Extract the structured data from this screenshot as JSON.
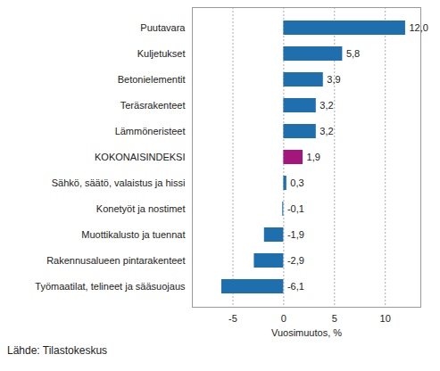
{
  "chart_data": {
    "type": "bar",
    "orientation": "horizontal",
    "categories": [
      "Puutavara",
      "Kuljetukset",
      "Betonielementit",
      "Teräsrakenteet",
      "Lämmöneristeet",
      "KOKONAISINDEKSI",
      "Sähkö, säätö, valaistus ja hissi",
      "Konetyöt ja nostimet",
      "Muottikalusto ja tuennat",
      "Rakennusalueen pintarakenteet",
      "Työmaatilat, telineet ja sääsuojaus"
    ],
    "values": [
      12.0,
      5.8,
      3.9,
      3.2,
      3.2,
      1.9,
      0.3,
      -0.1,
      -1.9,
      -2.9,
      -6.1
    ],
    "value_labels": [
      "12,0",
      "5,8",
      "3,9",
      "3,2",
      "3,2",
      "1,9",
      "0,3",
      "-0,1",
      "-1,9",
      "-2,9",
      "-6,1"
    ],
    "colors": [
      "#1f6fae",
      "#1f6fae",
      "#1f6fae",
      "#1f6fae",
      "#1f6fae",
      "#a3177d",
      "#1f6fae",
      "#1f6fae",
      "#1f6fae",
      "#1f6fae",
      "#1f6fae"
    ],
    "data_labels": true,
    "xlabel": "Vuosimuutos, %",
    "xlim": [
      -9,
      13.5
    ],
    "xticks": [
      -5,
      0,
      5,
      10
    ],
    "grid": true,
    "caption": "Lähde: Tilastokeskus"
  }
}
